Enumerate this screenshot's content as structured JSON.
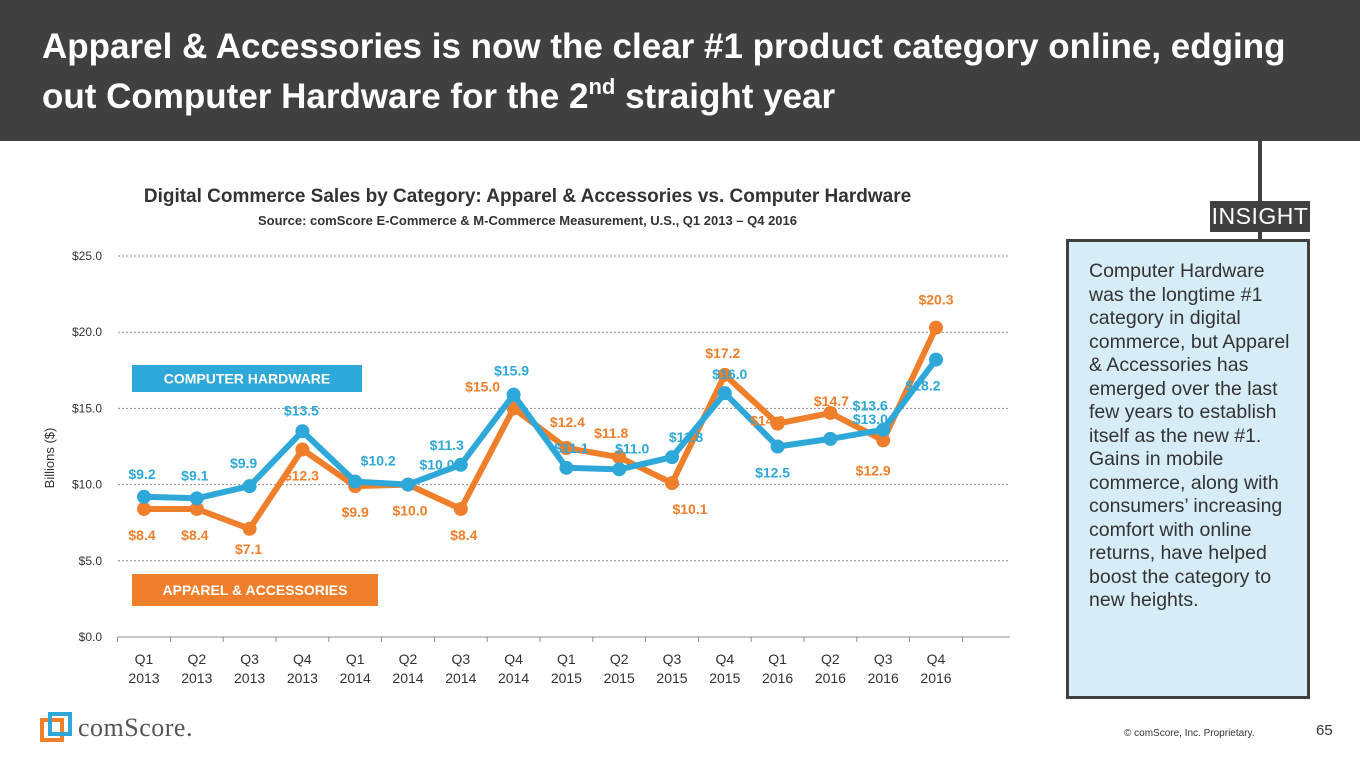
{
  "slide": {
    "title_part1": "Apparel & Accessories is now the clear #1 product category online, edging out Computer Hardware for the 2",
    "title_sup": "nd",
    "title_part2": " straight year",
    "insight_label": "INSIGHT",
    "insight_text": "Computer Hardware was the longtime #1 category in digital commerce, but Apparel & Accessories has emerged over the last few years to establish itself as the new #1. Gains in mobile commerce, along with consumers’ increasing comfort with online returns, have helped boost the category to new heights.",
    "logo_text": "comScore.",
    "copyright": "© comScore, Inc. Proprietary.",
    "page_number": "65"
  },
  "colors": {
    "header_bg": "#404040",
    "computer_hardware": "#2ea8d8",
    "apparel_accessories": "#f07f2c",
    "insight_bg": "#d6ecf7"
  },
  "chart_data": {
    "type": "line",
    "title": "Digital Commerce Sales by Category: Apparel & Accessories vs. Computer Hardware",
    "subtitle": "Source: comScore E-Commerce & M-Commerce Measurement, U.S., Q1 2013 – Q4 2016",
    "ylabel": "Billions ($)",
    "ylim": [
      0,
      25
    ],
    "yticks": [
      "$25.0",
      "$20.0",
      "$15.0",
      "$10.0",
      "$5.0",
      "$0.0"
    ],
    "grid": true,
    "categories": [
      [
        "Q1",
        "2013"
      ],
      [
        "Q2",
        "2013"
      ],
      [
        "Q3",
        "2013"
      ],
      [
        "Q4",
        "2013"
      ],
      [
        "Q1",
        "2014"
      ],
      [
        "Q2",
        "2014"
      ],
      [
        "Q3",
        "2014"
      ],
      [
        "Q4",
        "2014"
      ],
      [
        "Q1",
        "2015"
      ],
      [
        "Q2",
        "2015"
      ],
      [
        "Q3",
        "2015"
      ],
      [
        "Q4",
        "2015"
      ],
      [
        "Q1",
        "2016"
      ],
      [
        "Q2",
        "2016"
      ],
      [
        "Q3",
        "2016"
      ],
      [
        "Q4",
        "2016"
      ]
    ],
    "series": [
      {
        "name": "COMPUTER HARDWARE",
        "color": "#2ea8d8",
        "values": [
          9.2,
          9.1,
          9.9,
          13.5,
          10.2,
          10.0,
          11.3,
          15.9,
          11.1,
          11.0,
          11.8,
          16.0,
          12.5,
          13.0,
          13.6,
          18.2
        ],
        "labels": [
          "$9.2",
          "$9.1",
          "$9.9",
          "$13.5",
          "$10.2",
          "$10.0",
          "$11.3",
          "$15.9",
          "$11.1",
          "$11.0",
          "$11.8",
          "$16.0",
          "$12.5",
          "$13.0",
          "$13.6",
          "$18.2"
        ]
      },
      {
        "name": "APPAREL & ACCESSORIES",
        "color": "#f07f2c",
        "values": [
          8.4,
          8.4,
          7.1,
          12.3,
          9.9,
          10.0,
          8.4,
          15.0,
          12.4,
          11.8,
          10.1,
          17.2,
          14.0,
          14.7,
          12.9,
          20.3
        ],
        "labels": [
          "$8.4",
          "$8.4",
          "$7.1",
          "$12.3",
          "$9.9",
          "$10.0",
          "$8.4",
          "$15.0",
          "$12.4",
          "$11.8",
          "$10.1",
          "$17.2",
          "$14.0",
          "$14.7",
          "$12.9",
          "$20.3"
        ]
      }
    ]
  }
}
